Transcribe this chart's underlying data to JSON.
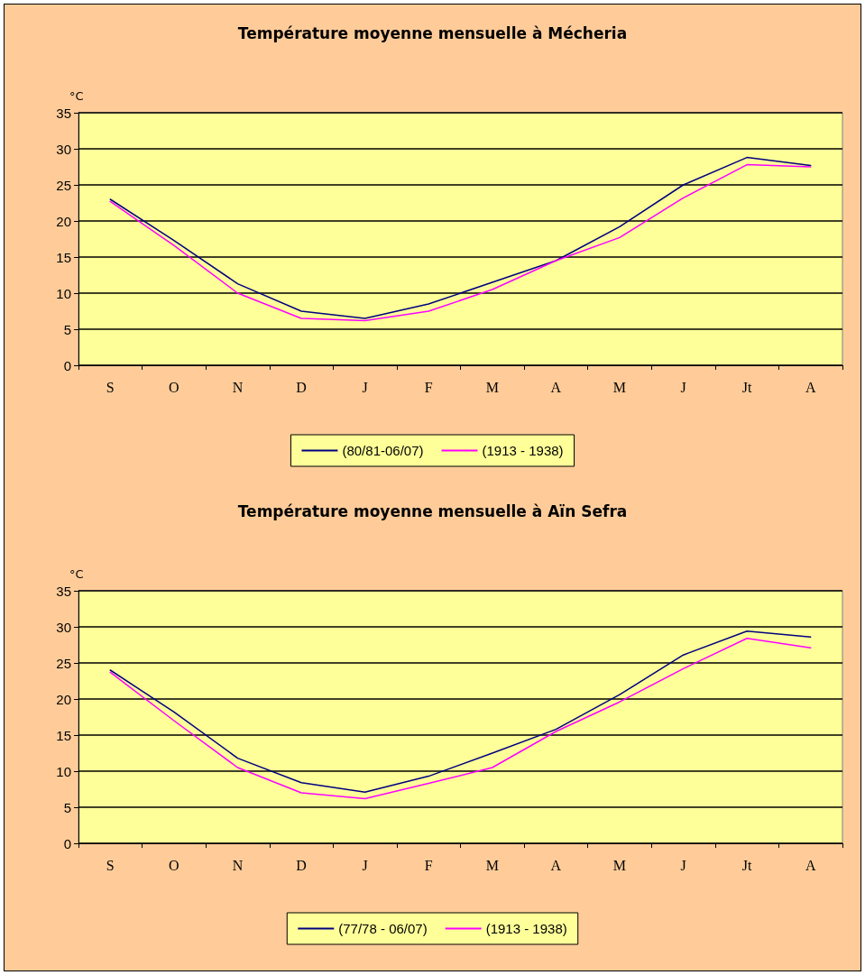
{
  "chart_data": [
    {
      "type": "line",
      "title": "Température moyenne mensuelle à Mécheria",
      "ylabel": "°C",
      "categories": [
        "S",
        "O",
        "N",
        "D",
        "J",
        "F",
        "M",
        "A",
        "M",
        "J",
        "Jt",
        "A"
      ],
      "ylim": [
        0,
        35
      ],
      "yticks": [
        0,
        5,
        10,
        15,
        20,
        25,
        30,
        35
      ],
      "grid": "y",
      "legend": "bottom",
      "marker": "none",
      "line_style": "solid",
      "series": [
        {
          "name": "(80/81-06/07)",
          "color": "#000080",
          "values": [
            23,
            17.3,
            11.3,
            7.5,
            6.5,
            8.5,
            11.5,
            14.5,
            19.2,
            25,
            28.8,
            27.7
          ]
        },
        {
          "name": "(1913 - 1938)",
          "color": "#ff00ff",
          "values": [
            22.7,
            16.6,
            10,
            6.5,
            6.2,
            7.5,
            10.5,
            14.5,
            17.7,
            23.2,
            27.8,
            27.5
          ]
        }
      ]
    },
    {
      "type": "line",
      "title": "Température moyenne mensuelle à Aïn Sefra",
      "ylabel": "°C",
      "categories": [
        "S",
        "O",
        "N",
        "D",
        "J",
        "F",
        "M",
        "A",
        "M",
        "J",
        "Jt",
        "A"
      ],
      "ylim": [
        0,
        35
      ],
      "yticks": [
        0,
        5,
        10,
        15,
        20,
        25,
        30,
        35
      ],
      "grid": "y",
      "legend": "bottom",
      "marker": "none",
      "line_style": "solid",
      "series": [
        {
          "name": "(77/78 - 06/07)",
          "color": "#000080",
          "values": [
            24,
            18.2,
            11.8,
            8.4,
            7.1,
            9.3,
            12.5,
            15.8,
            20.6,
            26.1,
            29.4,
            28.6
          ]
        },
        {
          "name": "(1913 - 1938)",
          "color": "#ff00ff",
          "values": [
            23.7,
            17,
            10.5,
            7,
            6.2,
            8.3,
            10.5,
            15.5,
            19.6,
            24.2,
            28.4,
            27.1
          ]
        }
      ]
    }
  ]
}
